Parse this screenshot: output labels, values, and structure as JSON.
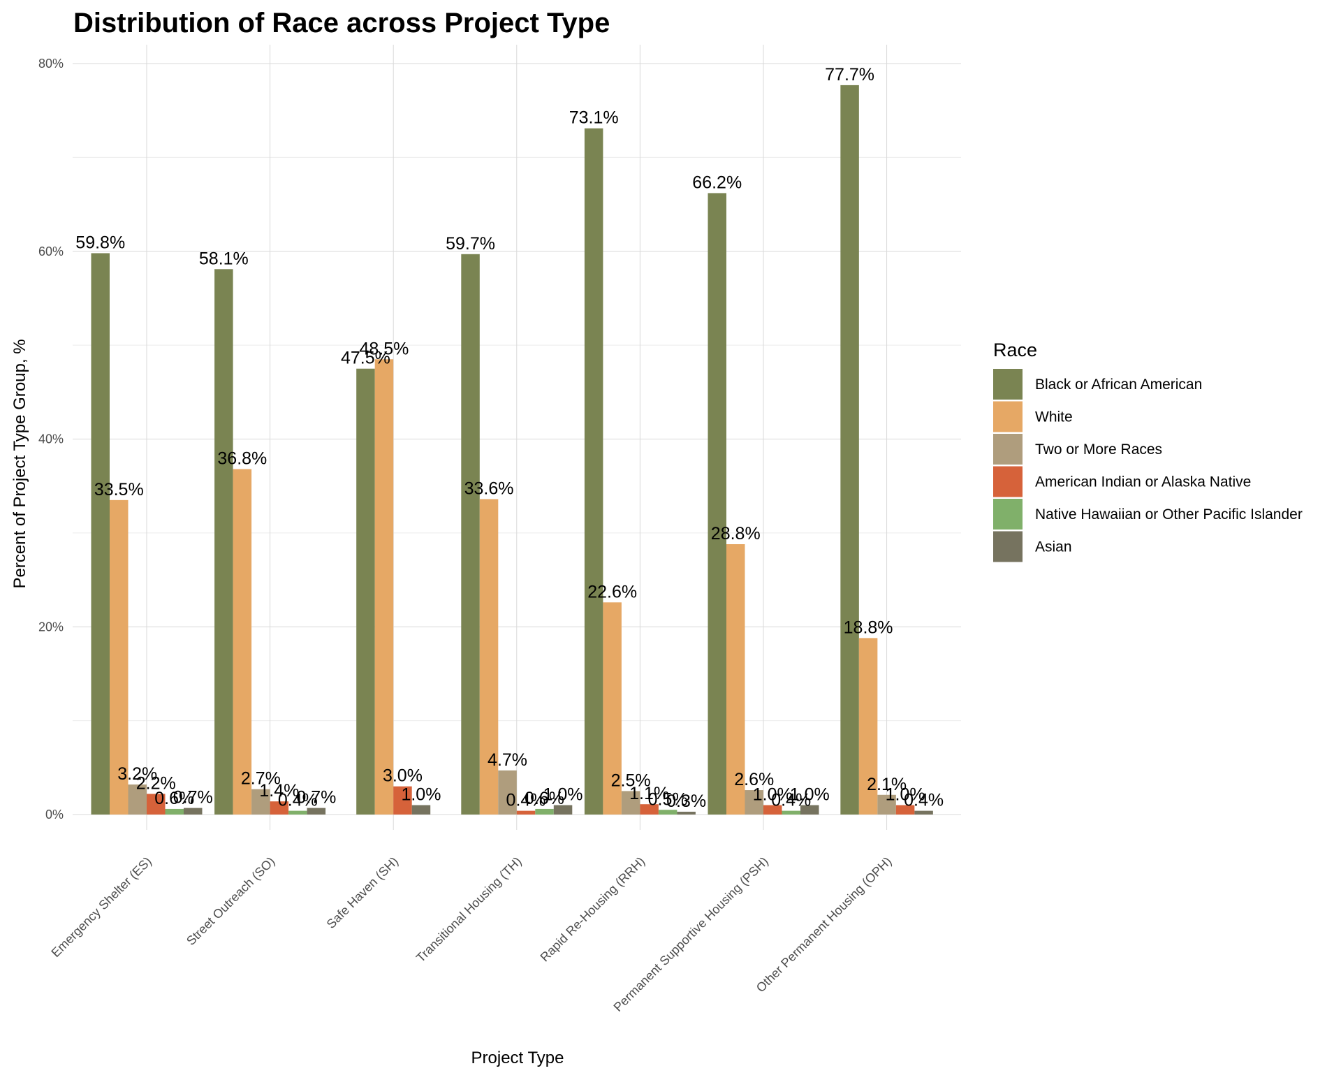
{
  "chart_data": {
    "type": "bar",
    "title": "Distribution of Race across Project Type",
    "xlabel": "Project Type",
    "ylabel": "Percent of Project Type Group, %",
    "ylim": [
      0,
      80
    ],
    "yticks": [
      "0%",
      "20%",
      "40%",
      "60%",
      "80%"
    ],
    "grid": true,
    "legend_title": "Race",
    "legend_position": "right",
    "categories": [
      "Emergency Shelter (ES)",
      "Street Outreach (SO)",
      "Safe Haven (SH)",
      "Transitional Housing (TH)",
      "Rapid Re-Housing (RRH)",
      "Permanent Supportive Housing (PSH)",
      "Other Permanent Housing (OPH)"
    ],
    "series": [
      {
        "name": "Black or African American",
        "color": "#7a8452",
        "values": [
          59.8,
          58.1,
          47.5,
          59.7,
          73.1,
          66.2,
          77.7
        ],
        "labels": [
          "59.8%",
          "58.1%",
          "47.5%",
          "59.7%",
          "73.1%",
          "66.2%",
          "77.7%"
        ]
      },
      {
        "name": "White",
        "color": "#e6a865",
        "values": [
          33.5,
          36.8,
          48.5,
          33.6,
          22.6,
          28.8,
          18.8
        ],
        "labels": [
          "33.5%",
          "36.8%",
          "48.5%",
          "33.6%",
          "22.6%",
          "28.8%",
          "18.8%"
        ]
      },
      {
        "name": "Two or More Races",
        "color": "#af9d7d",
        "values": [
          3.2,
          2.7,
          null,
          4.7,
          2.5,
          2.6,
          2.1
        ],
        "labels": [
          "3.2%",
          "2.7%",
          null,
          "4.7%",
          "2.5%",
          "2.6%",
          "2.1%"
        ]
      },
      {
        "name": "American Indian or Alaska Native",
        "color": "#d6623a",
        "values": [
          2.2,
          1.4,
          3.0,
          0.4,
          1.1,
          1.0,
          1.0
        ],
        "labels": [
          "2.2%",
          "1.4%",
          "3.0%",
          "0.4%",
          "1.1%",
          "1.0%",
          "1.0%"
        ]
      },
      {
        "name": "Native Hawaiian or Other Pacific Islander",
        "color": "#80b06a",
        "values": [
          0.6,
          0.4,
          null,
          0.6,
          0.5,
          0.4,
          null
        ],
        "labels": [
          "0.6%",
          "0.4%",
          null,
          "0.6%",
          "0.5%",
          "0.4%",
          null
        ]
      },
      {
        "name": "Asian",
        "color": "#76735f",
        "values": [
          0.7,
          0.7,
          1.0,
          1.0,
          0.3,
          1.0,
          0.4
        ],
        "labels": [
          "0.7%",
          "0.7%",
          "1.0%",
          "1.0%",
          "0.3%",
          "1.0%",
          "0.4%"
        ]
      }
    ]
  }
}
